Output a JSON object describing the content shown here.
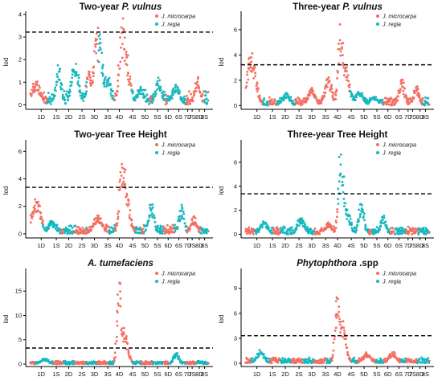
{
  "colors": {
    "microcarpa": "#f36f63",
    "regia": "#17b8be",
    "threshold": "#000000",
    "axis": "#000000"
  },
  "chart_data": [
    {
      "type": "scatter",
      "title_parts": [
        {
          "text": "Two-year ",
          "italic": false
        },
        {
          "text": "P. vulnus",
          "italic": true
        }
      ],
      "ylabel": "lod",
      "ylim": [
        -0.2,
        4.0
      ],
      "yticks": [
        "0",
        "1",
        "2",
        "3",
        "4"
      ],
      "threshold": 3.22,
      "legend": [
        "J. microcarpa",
        "J. regia"
      ],
      "legend_position": "top-right",
      "xticks": [
        "1D",
        "1S",
        "2D",
        "2S",
        "3D",
        "3S",
        "4D",
        "4S",
        "5D",
        "5S",
        "6D",
        "6S",
        "7D",
        "7S",
        "8D",
        "8S"
      ],
      "peaks": [
        {
          "x": 0.03,
          "h": 1.1,
          "w": 0.025,
          "series": 0
        },
        {
          "x": 0.16,
          "h": 1.85,
          "w": 0.015,
          "series": 1
        },
        {
          "x": 0.25,
          "h": 2.0,
          "w": 0.02,
          "series": 1
        },
        {
          "x": 0.33,
          "h": 1.6,
          "w": 0.015,
          "series": 1
        },
        {
          "x": 0.38,
          "h": 3.45,
          "w": 0.025,
          "series": 0
        },
        {
          "x": 0.43,
          "h": 1.4,
          "w": 0.02,
          "series": 1
        },
        {
          "x": 0.52,
          "h": 3.85,
          "w": 0.02,
          "series": 0
        },
        {
          "x": 0.54,
          "h": 2.3,
          "w": 0.02,
          "series": 0
        },
        {
          "x": 0.62,
          "h": 0.8,
          "w": 0.02,
          "series": 1
        },
        {
          "x": 0.72,
          "h": 1.25,
          "w": 0.015,
          "series": 1
        },
        {
          "x": 0.82,
          "h": 0.9,
          "w": 0.02,
          "series": 1
        },
        {
          "x": 0.94,
          "h": 1.3,
          "w": 0.015,
          "series": 0
        }
      ]
    },
    {
      "type": "scatter",
      "title_parts": [
        {
          "text": "Three-year ",
          "italic": false
        },
        {
          "text": "P. vulnus",
          "italic": true
        }
      ],
      "ylabel": "lod",
      "ylim": [
        -0.3,
        7.2
      ],
      "yticks": [
        "0",
        "2",
        "4",
        "6"
      ],
      "threshold": 3.22,
      "legend": [
        "J. microcarpa",
        "J. regia"
      ],
      "legend_position": "top-right",
      "xticks": [
        "1D",
        "1S",
        "2D",
        "2S",
        "3D",
        "3S",
        "4D",
        "4S",
        "5D",
        "5S",
        "6D",
        "6S",
        "7D",
        "7S",
        "8D",
        "8S"
      ],
      "peaks": [
        {
          "x": 0.03,
          "h": 4.3,
          "w": 0.025,
          "series": 0
        },
        {
          "x": 0.22,
          "h": 1.0,
          "w": 0.02,
          "series": 1
        },
        {
          "x": 0.36,
          "h": 1.5,
          "w": 0.02,
          "series": 0
        },
        {
          "x": 0.45,
          "h": 2.3,
          "w": 0.02,
          "series": 0
        },
        {
          "x": 0.52,
          "h": 7.0,
          "w": 0.015,
          "series": 0
        },
        {
          "x": 0.54,
          "h": 3.2,
          "w": 0.025,
          "series": 0
        },
        {
          "x": 0.62,
          "h": 1.4,
          "w": 0.02,
          "series": 1
        },
        {
          "x": 0.7,
          "h": 0.8,
          "w": 0.02,
          "series": 1
        },
        {
          "x": 0.85,
          "h": 2.3,
          "w": 0.015,
          "series": 0
        },
        {
          "x": 0.93,
          "h": 1.6,
          "w": 0.015,
          "series": 0
        }
      ]
    },
    {
      "type": "scatter",
      "title_parts": [
        {
          "text": "Two-year Tree Height",
          "italic": false
        }
      ],
      "ylabel": "lod",
      "ylim": [
        -0.3,
        6.6
      ],
      "yticks": [
        "0",
        "2",
        "4",
        "6"
      ],
      "threshold": 3.38,
      "legend": [
        "J. microcarpa",
        "J. regia"
      ],
      "legend_position": "top-right",
      "xticks": [
        "1D",
        "1S",
        "2D",
        "2S",
        "3D",
        "3S",
        "4D",
        "4S",
        "5D",
        "5S",
        "6D",
        "6S",
        "7D",
        "7S",
        "8D",
        "8S"
      ],
      "peaks": [
        {
          "x": 0.03,
          "h": 2.8,
          "w": 0.025,
          "series": 0
        },
        {
          "x": 0.12,
          "h": 1.0,
          "w": 0.02,
          "series": 1
        },
        {
          "x": 0.38,
          "h": 1.4,
          "w": 0.025,
          "series": 0
        },
        {
          "x": 0.52,
          "h": 6.3,
          "w": 0.018,
          "series": 0
        },
        {
          "x": 0.54,
          "h": 3.3,
          "w": 0.02,
          "series": 0
        },
        {
          "x": 0.68,
          "h": 2.4,
          "w": 0.015,
          "series": 1
        },
        {
          "x": 0.85,
          "h": 2.2,
          "w": 0.015,
          "series": 1
        },
        {
          "x": 0.92,
          "h": 1.3,
          "w": 0.015,
          "series": 0
        }
      ]
    },
    {
      "type": "scatter",
      "title_parts": [
        {
          "text": "Three-year Tree Height",
          "italic": false
        }
      ],
      "ylabel": "lod",
      "ylim": [
        -0.3,
        7.6
      ],
      "yticks": [
        "0",
        "2",
        "4",
        "6"
      ],
      "threshold": 3.38,
      "legend": [
        "J. microcarpa",
        "J. regia"
      ],
      "legend_position": "top-right",
      "xticks": [
        "1D",
        "1S",
        "2D",
        "2S",
        "3D",
        "3S",
        "4D",
        "4S",
        "5D",
        "5S",
        "6D",
        "6S",
        "7D",
        "7S",
        "8D",
        "8S"
      ],
      "peaks": [
        {
          "x": 0.1,
          "h": 1.1,
          "w": 0.02,
          "series": 1
        },
        {
          "x": 0.3,
          "h": 1.5,
          "w": 0.02,
          "series": 1
        },
        {
          "x": 0.45,
          "h": 1.0,
          "w": 0.02,
          "series": 0
        },
        {
          "x": 0.52,
          "h": 7.4,
          "w": 0.015,
          "series": 0
        },
        {
          "x": 0.55,
          "h": 2.2,
          "w": 0.02,
          "series": 1
        },
        {
          "x": 0.63,
          "h": 2.8,
          "w": 0.015,
          "series": 1
        },
        {
          "x": 0.75,
          "h": 1.6,
          "w": 0.015,
          "series": 1
        }
      ]
    },
    {
      "type": "scatter",
      "title_parts": [
        {
          "text": "A. tumefaciens",
          "italic": true
        }
      ],
      "ylabel": "lod",
      "ylim": [
        -0.5,
        19
      ],
      "yticks": [
        "0",
        "5",
        "10",
        "15"
      ],
      "threshold": 3.3,
      "legend": [
        "J. microcarpa",
        "J. regia"
      ],
      "legend_position": "top-right",
      "xticks": [
        "1D",
        "1S",
        "2D",
        "2S",
        "3D",
        "3S",
        "4D",
        "4S",
        "5D",
        "5S",
        "6D",
        "6S",
        "7D",
        "7S",
        "8D",
        "8S"
      ],
      "peaks": [
        {
          "x": 0.08,
          "h": 1.3,
          "w": 0.02,
          "series": 1
        },
        {
          "x": 0.5,
          "h": 18.5,
          "w": 0.012,
          "series": 0
        },
        {
          "x": 0.525,
          "h": 8.0,
          "w": 0.02,
          "series": 0
        },
        {
          "x": 0.82,
          "h": 2.5,
          "w": 0.015,
          "series": 1
        }
      ]
    },
    {
      "type": "scatter",
      "title_parts": [
        {
          "text": "Phytophthora",
          "italic": true
        },
        {
          "text": " .spp",
          "italic": false
        }
      ],
      "ylabel": "lod",
      "ylim": [
        -0.4,
        11
      ],
      "yticks": [
        "0",
        "3",
        "6",
        "9"
      ],
      "threshold": 3.3,
      "legend": [
        "J. microcarpa",
        "J. regia"
      ],
      "legend_position": "top-right",
      "xticks": [
        "1D",
        "1S",
        "2D",
        "2S",
        "3D",
        "3S",
        "4D",
        "4S",
        "5D",
        "5S",
        "6D",
        "6S",
        "7D",
        "7S",
        "8D",
        "8S"
      ],
      "peaks": [
        {
          "x": 0.08,
          "h": 1.6,
          "w": 0.02,
          "series": 1
        },
        {
          "x": 0.5,
          "h": 10.5,
          "w": 0.012,
          "series": 0
        },
        {
          "x": 0.525,
          "h": 5.5,
          "w": 0.02,
          "series": 0
        },
        {
          "x": 0.66,
          "h": 1.3,
          "w": 0.02,
          "series": 0
        },
        {
          "x": 0.8,
          "h": 1.4,
          "w": 0.02,
          "series": 0
        }
      ]
    }
  ]
}
